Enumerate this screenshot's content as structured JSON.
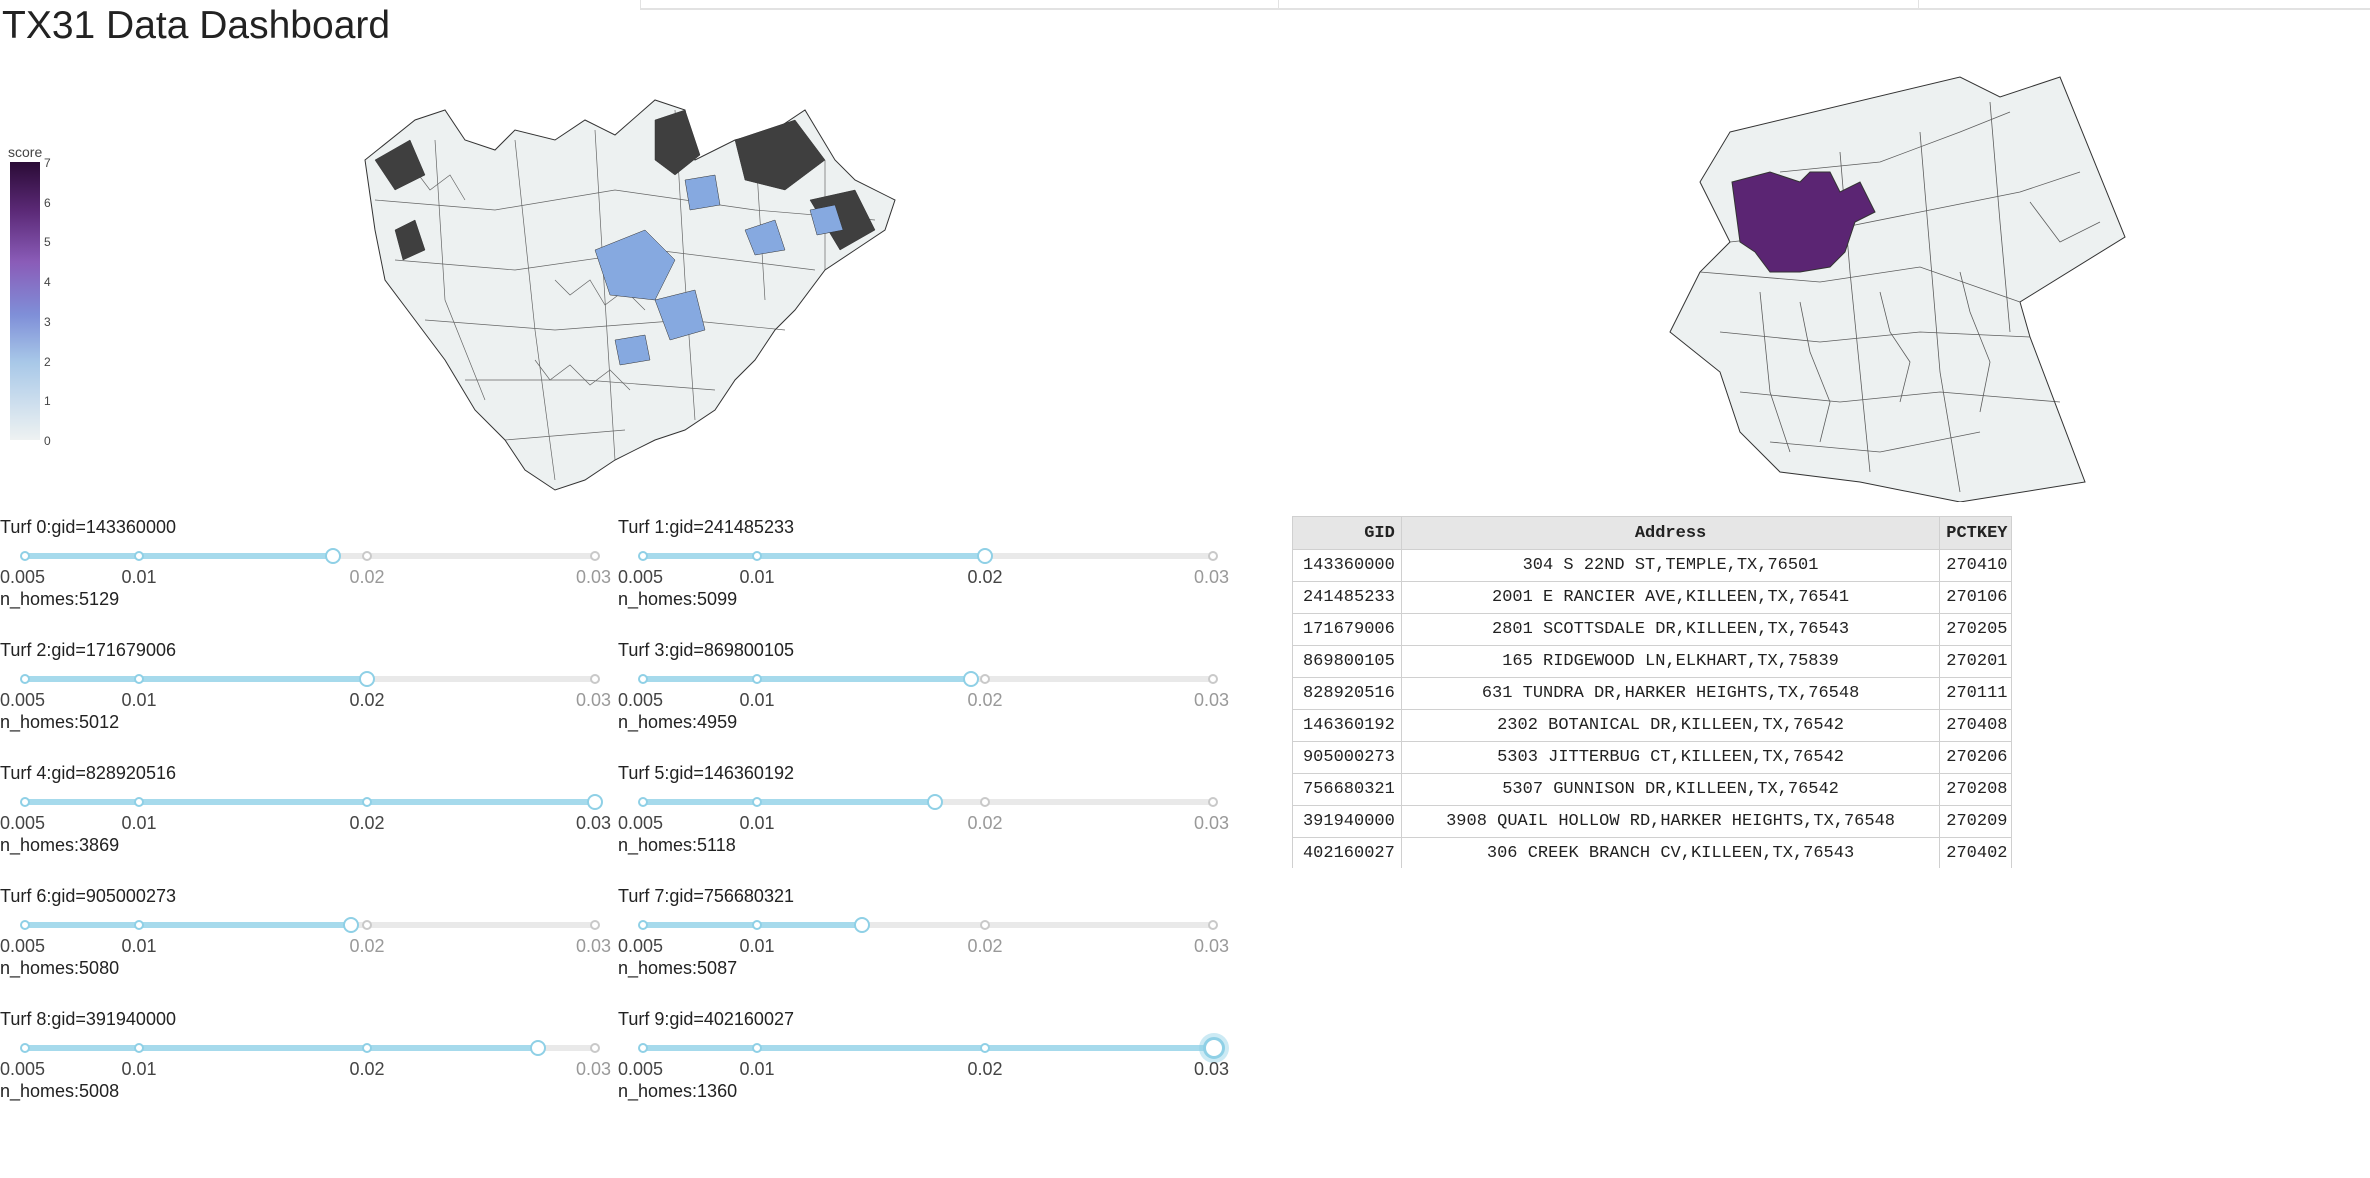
{
  "title": "TX31 Data Dashboard",
  "colorbar": {
    "title": "score",
    "ticks": [
      "7",
      "6",
      "5",
      "4",
      "3",
      "2",
      "1",
      "0"
    ]
  },
  "slider_marks": [
    "0.005",
    "0.01",
    "0.02",
    "0.03"
  ],
  "slider_min": 0.005,
  "slider_max": 0.03,
  "turfs": [
    {
      "label": "Turf 0:gid=143360000",
      "value": 0.0185,
      "n_homes": "n_homes:5129"
    },
    {
      "label": "Turf 1:gid=241485233",
      "value": 0.02,
      "n_homes": "n_homes:5099"
    },
    {
      "label": "Turf 2:gid=171679006",
      "value": 0.02,
      "n_homes": "n_homes:5012"
    },
    {
      "label": "Turf 3:gid=869800105",
      "value": 0.0194,
      "n_homes": "n_homes:4959"
    },
    {
      "label": "Turf 4:gid=828920516",
      "value": 0.03,
      "n_homes": "n_homes:3869"
    },
    {
      "label": "Turf 5:gid=146360192",
      "value": 0.0178,
      "n_homes": "n_homes:5118"
    },
    {
      "label": "Turf 6:gid=905000273",
      "value": 0.0193,
      "n_homes": "n_homes:5080"
    },
    {
      "label": "Turf 7:gid=756680321",
      "value": 0.0146,
      "n_homes": "n_homes:5087"
    },
    {
      "label": "Turf 8:gid=391940000",
      "value": 0.0275,
      "n_homes": "n_homes:5008"
    },
    {
      "label": "Turf 9:gid=402160027",
      "value": 0.03,
      "n_homes": "n_homes:1360"
    }
  ],
  "table": {
    "headers": [
      "GID",
      "Address",
      "PCTKEY"
    ],
    "rows": [
      [
        "143360000",
        "304 S 22ND ST,TEMPLE,TX,76501",
        "270410"
      ],
      [
        "241485233",
        "2001 E RANCIER AVE,KILLEEN,TX,76541",
        "270106"
      ],
      [
        "171679006",
        "2801 SCOTTSDALE DR,KILLEEN,TX,76543",
        "270205"
      ],
      [
        "869800105",
        "165 RIDGEWOOD LN,ELKHART,TX,75839",
        "270201"
      ],
      [
        "828920516",
        "631 TUNDRA DR,HARKER HEIGHTS,TX,76548",
        "270111"
      ],
      [
        "146360192",
        "2302 BOTANICAL DR,KILLEEN,TX,76542",
        "270408"
      ],
      [
        "905000273",
        "5303 JITTERBUG CT,KILLEEN,TX,76542",
        "270206"
      ],
      [
        "756680321",
        "5307 GUNNISON DR,KILLEEN,TX,76542",
        "270208"
      ],
      [
        "391940000",
        "3908 QUAIL HOLLOW RD,HARKER HEIGHTS,TX,76548",
        "270209"
      ],
      [
        "402160027",
        "306 CREEK BRANCH CV,KILLEEN,TX,76543",
        "270402"
      ]
    ]
  },
  "colors": {
    "map_fill": "#edf1f1",
    "map_stroke": "#333333",
    "accent": "#8fd0e6",
    "highlight": "#5b2573"
  }
}
